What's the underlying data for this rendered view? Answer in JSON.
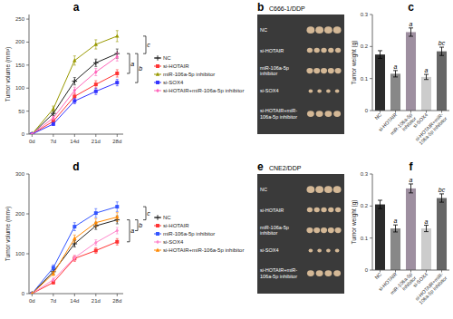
{
  "chart_data": [
    {
      "type": "line",
      "title": "a",
      "ylabel": "Tumor volume (mm³)",
      "x": [
        0,
        7,
        14,
        21,
        28
      ],
      "xlim": [
        -1,
        30
      ],
      "xticks": [
        {
          "value": 0,
          "label": "0d"
        },
        {
          "value": 7,
          "label": "7d"
        },
        {
          "value": 14,
          "label": "14d"
        },
        {
          "value": 21,
          "label": "21d"
        },
        {
          "value": 28,
          "label": "28d"
        }
      ],
      "ylim": [
        0,
        260
      ],
      "yticks": [
        0,
        50,
        100,
        150,
        200,
        250
      ],
      "grid": false,
      "legend": "right",
      "series": [
        {
          "name": "NC",
          "color": "#222222",
          "marker": "plus",
          "values": [
            0,
            45,
            115,
            155,
            175
          ],
          "errors": [
            0,
            5,
            8,
            8,
            10
          ]
        },
        {
          "name": "si-HOTAIR",
          "color": "#FF3333",
          "marker": "square",
          "values": [
            0,
            28,
            82,
            108,
            132
          ],
          "errors": [
            0,
            4,
            7,
            8,
            8
          ]
        },
        {
          "name": "miR-106a-5p inhibitor",
          "color": "#999900",
          "marker": "triangle",
          "values": [
            0,
            55,
            160,
            195,
            213
          ],
          "errors": [
            0,
            6,
            10,
            10,
            12
          ]
        },
        {
          "name": "si-SOX4",
          "color": "#3333FF",
          "marker": "square",
          "values": [
            0,
            22,
            72,
            93,
            112
          ],
          "errors": [
            0,
            3,
            6,
            7,
            7
          ]
        },
        {
          "name": "si-HOTAIR+miR-106a-5p inhibitor",
          "color": "#FF66BB",
          "marker": "diamond",
          "values": [
            0,
            35,
            95,
            135,
            168
          ],
          "errors": [
            0,
            4,
            7,
            8,
            9
          ]
        }
      ],
      "annotations": [
        {
          "text": "a",
          "from": "NC",
          "to": "si-HOTAIR"
        },
        {
          "text": "b",
          "from": "NC",
          "to": "si-SOX4"
        },
        {
          "text": "c",
          "from": "NC",
          "to": "miR-106a-5p inhibitor"
        }
      ]
    },
    {
      "type": "image",
      "title": "b",
      "subtitle": "C666-1/DDP",
      "categories": [
        "NC",
        "si-HOTAIR",
        "miR-106a-5p inhibitor",
        "si-SOX4",
        "si-HOTAIR+miR-106a-5p inhibitor"
      ]
    },
    {
      "type": "bar",
      "title": "c",
      "ylabel": "Tumor weight (g)",
      "categories": [
        "NC",
        "si-HOTAIR",
        "miR-106a-5p\ninhibitor",
        "si-SOX4",
        "si-HOTAIR+miR-\n106a-5p inhibitor"
      ],
      "values": [
        0.175,
        0.115,
        0.245,
        0.105,
        0.185
      ],
      "errors": [
        0.012,
        0.01,
        0.013,
        0.008,
        0.013
      ],
      "colors": [
        "#2b2b2b",
        "#888888",
        "#9e8fa0",
        "#cccccc",
        "#666666"
      ],
      "annotations": [
        null,
        "a",
        "a",
        "a",
        "bc"
      ],
      "ylim": [
        0,
        0.3
      ],
      "yticks": [
        0,
        0.1,
        0.2,
        0.3
      ],
      "grid": false
    },
    {
      "type": "line",
      "title": "d",
      "ylabel": "Tumor volume (mm³)",
      "x": [
        0,
        7,
        14,
        21,
        28
      ],
      "xlim": [
        -1,
        30
      ],
      "xticks": [
        {
          "value": 0,
          "label": "0d"
        },
        {
          "value": 7,
          "label": "7d"
        },
        {
          "value": 14,
          "label": "14d"
        },
        {
          "value": 21,
          "label": "21d"
        },
        {
          "value": 28,
          "label": "28d"
        }
      ],
      "ylim": [
        0,
        300
      ],
      "yticks": [
        0,
        100,
        200,
        300
      ],
      "grid": false,
      "legend": "right",
      "series": [
        {
          "name": "NC",
          "color": "#222222",
          "marker": "plus",
          "values": [
            0,
            55,
            125,
            170,
            185
          ],
          "errors": [
            0,
            5,
            8,
            9,
            10
          ]
        },
        {
          "name": "si-HOTAIR",
          "color": "#FF3333",
          "marker": "square",
          "values": [
            0,
            28,
            88,
            108,
            130
          ],
          "errors": [
            0,
            4,
            7,
            7,
            8
          ]
        },
        {
          "name": "miR-106a-5p inhibitor",
          "color": "#3355FF",
          "marker": "square",
          "values": [
            0,
            65,
            168,
            202,
            218
          ],
          "errors": [
            0,
            7,
            10,
            11,
            12
          ]
        },
        {
          "name": "si-SOX4",
          "color": "#FF88CC",
          "marker": "diamond",
          "values": [
            0,
            35,
            90,
            128,
            158
          ],
          "errors": [
            0,
            4,
            6,
            7,
            8
          ]
        },
        {
          "name": "si-HOTAIR+miR-106a-5p inhibitor",
          "color": "#FF8800",
          "marker": "triangle",
          "values": [
            0,
            50,
            138,
            178,
            192
          ],
          "errors": [
            0,
            5,
            9,
            10,
            11
          ]
        }
      ],
      "annotations": [
        {
          "text": "a",
          "from": "NC",
          "to": "si-HOTAIR"
        },
        {
          "text": "b",
          "from": "NC",
          "to": "si-SOX4"
        },
        {
          "text": "c",
          "from": "NC",
          "to": "miR-106a-5p inhibitor"
        }
      ]
    },
    {
      "type": "image",
      "title": "e",
      "subtitle": "CNE2/DDP",
      "categories": [
        "NC",
        "si-HOTAIR",
        "miR-106a-5p inhibitor",
        "si-SOX4",
        "si-HOTAIR+miR-106a-5p inhibitor"
      ]
    },
    {
      "type": "bar",
      "title": "f",
      "ylabel": "Tumor weight (g)",
      "categories": [
        "NC",
        "si-HOTAIR",
        "miR-106a-5p\ninhibitor",
        "si-SOX4",
        "si-HOTAIR+miR-\n106a-5p inhibitor"
      ],
      "values": [
        0.205,
        0.13,
        0.255,
        0.13,
        0.225
      ],
      "errors": [
        0.013,
        0.011,
        0.014,
        0.01,
        0.013
      ],
      "colors": [
        "#2b2b2b",
        "#888888",
        "#9e8fa0",
        "#cccccc",
        "#666666"
      ],
      "annotations": [
        null,
        "a",
        "a",
        "a",
        "bc"
      ],
      "ylim": [
        0,
        0.3
      ],
      "yticks": [
        0,
        0.1,
        0.2,
        0.3
      ],
      "grid": false
    }
  ]
}
